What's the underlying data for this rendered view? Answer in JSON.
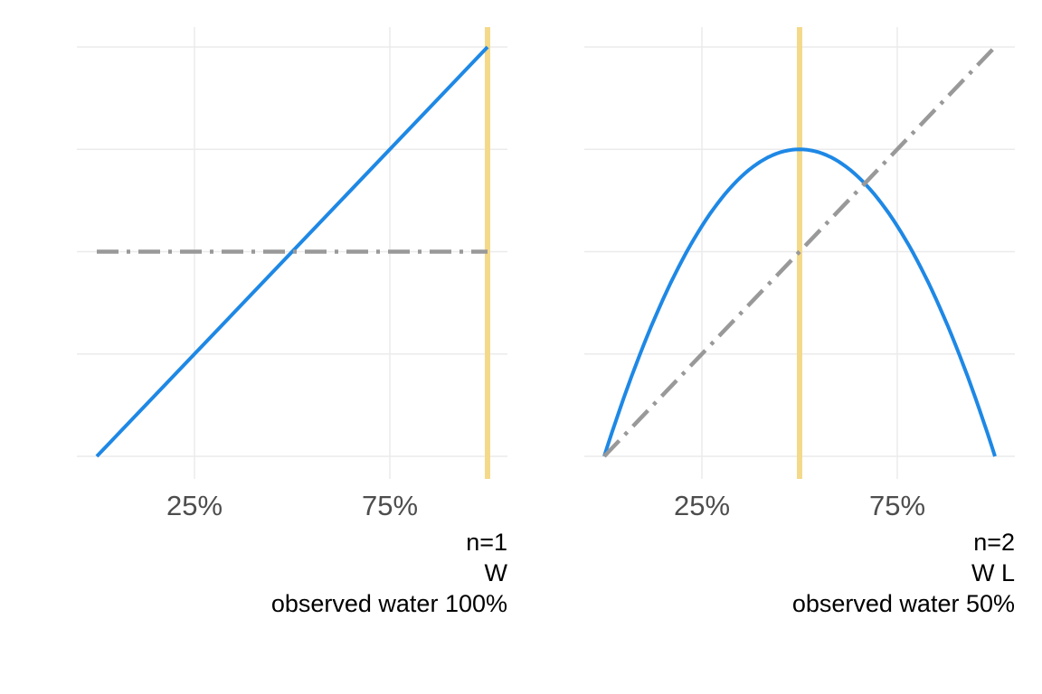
{
  "chart_data": [
    {
      "type": "line",
      "x_ticks": [
        {
          "value": 0.25,
          "label": "25%"
        },
        {
          "value": 0.75,
          "label": "75%"
        }
      ],
      "xlim": [
        0,
        1
      ],
      "ylim": [
        0,
        2
      ],
      "grid": true,
      "observed_proportion": 1.0,
      "series": [
        {
          "role": "posterior",
          "style": "solid",
          "color": "#1e88e5",
          "x": [
            0,
            0.25,
            0.5,
            0.75,
            1.0
          ],
          "y": [
            0,
            0.5,
            1.0,
            1.5,
            2.0
          ]
        },
        {
          "role": "prior",
          "style": "dashdot",
          "color": "#999999",
          "x": [
            0,
            1
          ],
          "y": [
            1,
            1
          ]
        }
      ],
      "caption": [
        "n=1",
        "W",
        "observed water 100%"
      ]
    },
    {
      "type": "line",
      "x_ticks": [
        {
          "value": 0.25,
          "label": "25%"
        },
        {
          "value": 0.75,
          "label": "75%"
        }
      ],
      "xlim": [
        0,
        1
      ],
      "ylim": [
        0,
        2
      ],
      "grid": true,
      "observed_proportion": 0.5,
      "series": [
        {
          "role": "posterior",
          "style": "solid",
          "color": "#1e88e5",
          "x": [
            0,
            0.1,
            0.2,
            0.3,
            0.4,
            0.5,
            0.6,
            0.7,
            0.8,
            0.9,
            1.0
          ],
          "y": [
            0,
            0.54,
            0.96,
            1.26,
            1.44,
            1.5,
            1.44,
            1.26,
            0.96,
            0.54,
            0
          ]
        },
        {
          "role": "prior",
          "style": "dashdot",
          "color": "#999999",
          "x": [
            0,
            1
          ],
          "y": [
            0,
            2
          ]
        }
      ],
      "caption": [
        "n=2",
        "W L",
        "observed water 50%"
      ]
    }
  ],
  "colors": {
    "posterior": "#1e88e5",
    "prior": "#999999",
    "observed_line": "#f5d98a",
    "grid": "#ebebeb",
    "tick_text": "#4d4d4d"
  }
}
